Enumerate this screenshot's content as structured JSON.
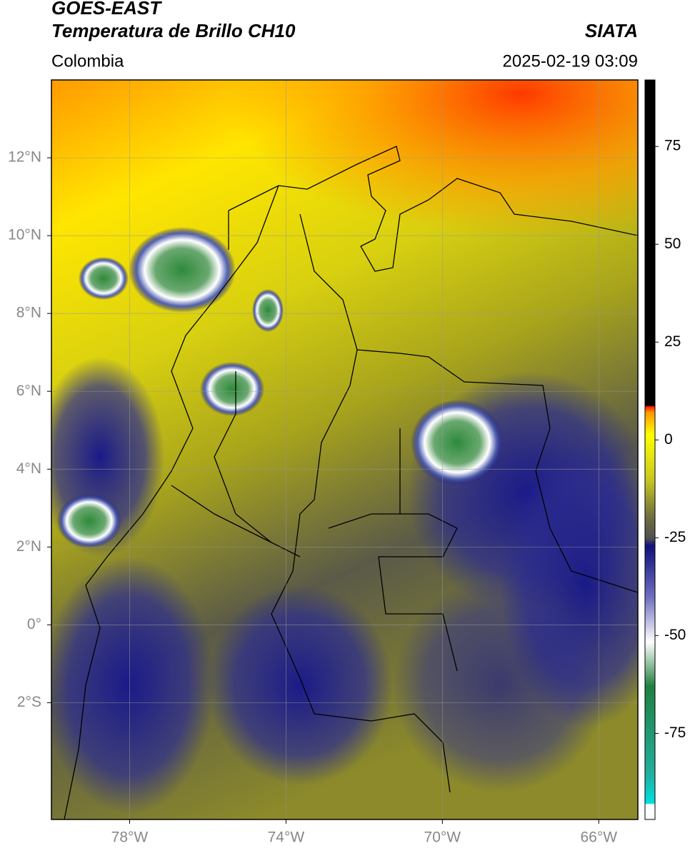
{
  "header": {
    "title": "GOES-EAST",
    "subtitle": "Temperatura de Brillo CH10",
    "region": "Colombia",
    "source": "SIATA",
    "datetime": "2025-02-19 03:09"
  },
  "map": {
    "xlim": [
      -80,
      -65
    ],
    "ylim": [
      -5,
      14
    ],
    "xticks": [
      {
        "value": -78,
        "label": "78°W"
      },
      {
        "value": -74,
        "label": "74°W"
      },
      {
        "value": -70,
        "label": "70°W"
      },
      {
        "value": -66,
        "label": "66°W"
      }
    ],
    "yticks": [
      {
        "value": 12,
        "label": "12°N"
      },
      {
        "value": 10,
        "label": "10°N"
      },
      {
        "value": 8,
        "label": "8°N"
      },
      {
        "value": 6,
        "label": "6°N"
      },
      {
        "value": 4,
        "label": "4°N"
      },
      {
        "value": 2,
        "label": "2°N"
      },
      {
        "value": 0,
        "label": "0°"
      },
      {
        "value": -2,
        "label": "2°S"
      }
    ],
    "grid": true
  },
  "colorbar": {
    "lim": [
      -97,
      92
    ],
    "ticks": [
      75,
      50,
      25,
      0,
      -25,
      -50,
      -75
    ]
  }
}
